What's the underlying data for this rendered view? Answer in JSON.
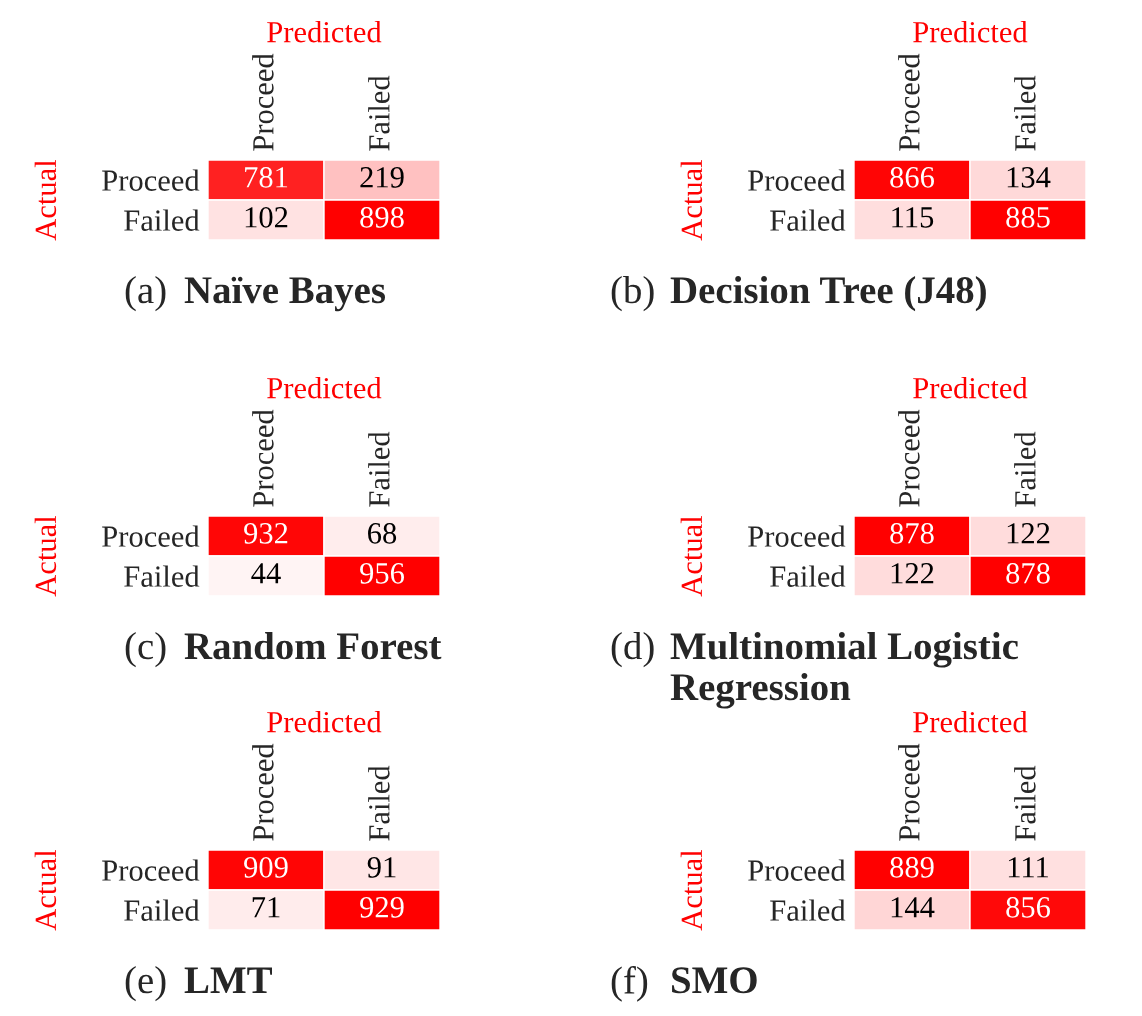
{
  "chart_data": [
    {
      "type": "heatmap",
      "title": "(a) Naïve Bayes",
      "xlabel": "Predicted",
      "ylabel": "Actual",
      "categories": [
        "Proceed",
        "Failed"
      ],
      "y_categories": [
        "Proceed",
        "Failed"
      ],
      "cells": [
        [
          781,
          219
        ],
        [
          102,
          898
        ]
      ],
      "data_labels": true
    },
    {
      "type": "heatmap",
      "title": "(b) Decision Tree (J48)",
      "xlabel": "Predicted",
      "ylabel": "Actual",
      "categories": [
        "Proceed",
        "Failed"
      ],
      "y_categories": [
        "Proceed",
        "Failed"
      ],
      "cells": [
        [
          866,
          134
        ],
        [
          115,
          885
        ]
      ],
      "data_labels": true
    },
    {
      "type": "heatmap",
      "title": "(c) Random Forest",
      "xlabel": "Predicted",
      "ylabel": "Actual",
      "categories": [
        "Proceed",
        "Failed"
      ],
      "y_categories": [
        "Proceed",
        "Failed"
      ],
      "cells": [
        [
          932,
          68
        ],
        [
          44,
          956
        ]
      ],
      "data_labels": true
    },
    {
      "type": "heatmap",
      "title": "(d) Multinomial Logistic Regression",
      "xlabel": "Predicted",
      "ylabel": "Actual",
      "categories": [
        "Proceed",
        "Failed"
      ],
      "y_categories": [
        "Proceed",
        "Failed"
      ],
      "cells": [
        [
          878,
          122
        ],
        [
          122,
          878
        ]
      ],
      "data_labels": true
    },
    {
      "type": "heatmap",
      "title": "(e) LMT",
      "xlabel": "Predicted",
      "ylabel": "Actual",
      "categories": [
        "Proceed",
        "Failed"
      ],
      "y_categories": [
        "Proceed",
        "Failed"
      ],
      "cells": [
        [
          909,
          91
        ],
        [
          71,
          929
        ]
      ],
      "data_labels": true
    },
    {
      "type": "heatmap",
      "title": "(f) SMO",
      "xlabel": "Predicted",
      "ylabel": "Actual",
      "categories": [
        "Proceed",
        "Failed"
      ],
      "y_categories": [
        "Proceed",
        "Failed"
      ],
      "cells": [
        [
          889,
          111
        ],
        [
          144,
          856
        ]
      ],
      "data_labels": true
    }
  ]
}
